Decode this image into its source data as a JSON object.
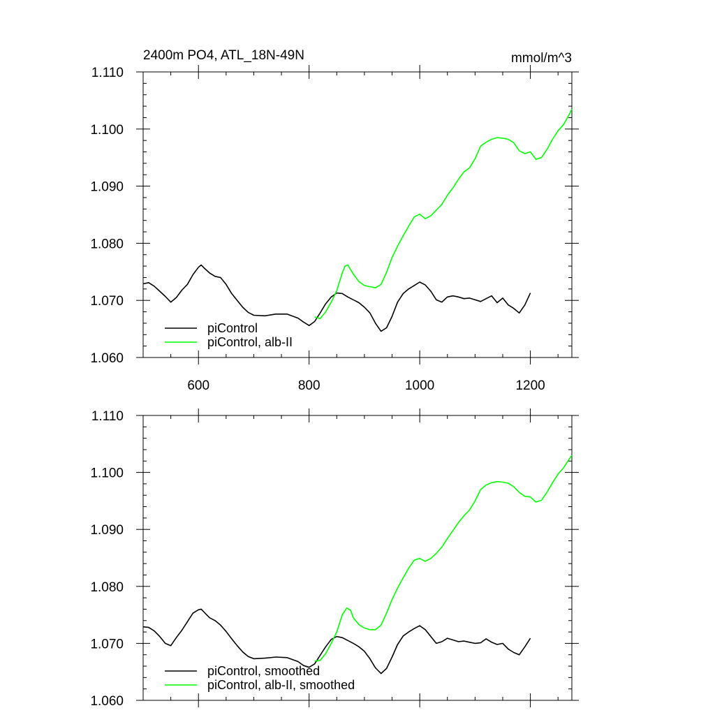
{
  "colors": {
    "frame": "#000000",
    "picontrol": "#000000",
    "albII": "#00ff00"
  },
  "chart_data": [
    {
      "type": "line",
      "title": "2400m PO4, ATL_18N-49N",
      "units": "mmol/m^3",
      "xlim": [
        500,
        1275
      ],
      "ylim": [
        1.06,
        1.11
      ],
      "x_ticks": [
        600,
        800,
        1000,
        1200
      ],
      "x_tick_labels": [
        "600",
        "800",
        "1000",
        "1200"
      ],
      "y_ticks": [
        1.06,
        1.07,
        1.08,
        1.09,
        1.1,
        1.11
      ],
      "y_tick_labels": [
        "1.060",
        "1.070",
        "1.080",
        "1.090",
        "1.100",
        "1.110"
      ],
      "grid": false,
      "legend_position": "bottom-left",
      "series": [
        {
          "name": "piControl",
          "color": "#000000",
          "points": [
            [
              500,
              1.0729
            ],
            [
              510,
              1.0731
            ],
            [
              520,
              1.0725
            ],
            [
              530,
              1.0716
            ],
            [
              540,
              1.0707
            ],
            [
              550,
              1.0697
            ],
            [
              560,
              1.0705
            ],
            [
              570,
              1.0718
            ],
            [
              580,
              1.0728
            ],
            [
              590,
              1.0745
            ],
            [
              600,
              1.0758
            ],
            [
              605,
              1.0762
            ],
            [
              610,
              1.0757
            ],
            [
              620,
              1.0748
            ],
            [
              630,
              1.0742
            ],
            [
              640,
              1.074
            ],
            [
              650,
              1.0728
            ],
            [
              660,
              1.0712
            ],
            [
              670,
              1.07
            ],
            [
              680,
              1.0688
            ],
            [
              690,
              1.0679
            ],
            [
              700,
              1.0674
            ],
            [
              720,
              1.0673
            ],
            [
              740,
              1.0676
            ],
            [
              760,
              1.0676
            ],
            [
              780,
              1.0669
            ],
            [
              790,
              1.0662
            ],
            [
              800,
              1.0656
            ],
            [
              810,
              1.0663
            ],
            [
              820,
              1.0678
            ],
            [
              830,
              1.0694
            ],
            [
              840,
              1.0706
            ],
            [
              850,
              1.0713
            ],
            [
              860,
              1.0712
            ],
            [
              870,
              1.0706
            ],
            [
              880,
              1.0701
            ],
            [
              890,
              1.0696
            ],
            [
              900,
              1.0688
            ],
            [
              910,
              1.0678
            ],
            [
              920,
              1.066
            ],
            [
              930,
              1.0646
            ],
            [
              940,
              1.0652
            ],
            [
              950,
              1.0672
            ],
            [
              960,
              1.0697
            ],
            [
              970,
              1.0712
            ],
            [
              980,
              1.072
            ],
            [
              990,
              1.0726
            ],
            [
              1000,
              1.0732
            ],
            [
              1010,
              1.0727
            ],
            [
              1020,
              1.0716
            ],
            [
              1030,
              1.0701
            ],
            [
              1040,
              1.0697
            ],
            [
              1050,
              1.0706
            ],
            [
              1060,
              1.0708
            ],
            [
              1070,
              1.0706
            ],
            [
              1080,
              1.0703
            ],
            [
              1090,
              1.0704
            ],
            [
              1100,
              1.0701
            ],
            [
              1110,
              1.0698
            ],
            [
              1120,
              1.0703
            ],
            [
              1130,
              1.0708
            ],
            [
              1140,
              1.0696
            ],
            [
              1150,
              1.0704
            ],
            [
              1160,
              1.0692
            ],
            [
              1170,
              1.0686
            ],
            [
              1180,
              1.0678
            ],
            [
              1190,
              1.0692
            ],
            [
              1200,
              1.0713
            ]
          ]
        },
        {
          "name": "piControl, alb-II",
          "color": "#00ff00",
          "points": [
            [
              810,
              1.0671
            ],
            [
              820,
              1.0668
            ],
            [
              830,
              1.068
            ],
            [
              840,
              1.0697
            ],
            [
              850,
              1.0717
            ],
            [
              860,
              1.0748
            ],
            [
              865,
              1.076
            ],
            [
              870,
              1.0762
            ],
            [
              880,
              1.0746
            ],
            [
              890,
              1.0733
            ],
            [
              900,
              1.0726
            ],
            [
              910,
              1.0724
            ],
            [
              920,
              1.0722
            ],
            [
              930,
              1.0728
            ],
            [
              940,
              1.0749
            ],
            [
              950,
              1.0775
            ],
            [
              960,
              1.0795
            ],
            [
              970,
              1.0813
            ],
            [
              980,
              1.083
            ],
            [
              990,
              1.0846
            ],
            [
              1000,
              1.0851
            ],
            [
              1010,
              1.0843
            ],
            [
              1020,
              1.0848
            ],
            [
              1030,
              1.0858
            ],
            [
              1040,
              1.0868
            ],
            [
              1050,
              1.0884
            ],
            [
              1060,
              1.0897
            ],
            [
              1070,
              1.0912
            ],
            [
              1080,
              1.0925
            ],
            [
              1090,
              1.0932
            ],
            [
              1100,
              1.0948
            ],
            [
              1110,
              1.097
            ],
            [
              1120,
              1.0977
            ],
            [
              1130,
              1.0982
            ],
            [
              1140,
              1.0985
            ],
            [
              1150,
              1.0984
            ],
            [
              1160,
              1.0982
            ],
            [
              1170,
              1.0976
            ],
            [
              1180,
              1.0962
            ],
            [
              1190,
              1.0957
            ],
            [
              1200,
              1.096
            ],
            [
              1210,
              1.0947
            ],
            [
              1220,
              1.095
            ],
            [
              1230,
              1.0964
            ],
            [
              1240,
              1.0982
            ],
            [
              1250,
              1.0997
            ],
            [
              1260,
              1.1008
            ],
            [
              1270,
              1.1025
            ],
            [
              1275,
              1.1035
            ]
          ]
        }
      ]
    },
    {
      "type": "line",
      "title": "",
      "units": "",
      "xlim": [
        500,
        1275
      ],
      "ylim": [
        1.06,
        1.11
      ],
      "x_ticks": [
        600,
        800,
        1000,
        1200
      ],
      "x_tick_labels": [],
      "y_ticks": [
        1.06,
        1.07,
        1.08,
        1.09,
        1.1,
        1.11
      ],
      "y_tick_labels": [
        "1.060",
        "1.070",
        "1.080",
        "1.090",
        "1.100",
        "1.110"
      ],
      "grid": false,
      "legend_position": "bottom-left",
      "series": [
        {
          "name": "piControl, smoothed",
          "color": "#000000",
          "points": [
            [
              500,
              1.0729
            ],
            [
              510,
              1.0728
            ],
            [
              520,
              1.0722
            ],
            [
              530,
              1.0712
            ],
            [
              540,
              1.07
            ],
            [
              550,
              1.0696
            ],
            [
              560,
              1.071
            ],
            [
              570,
              1.0723
            ],
            [
              580,
              1.0738
            ],
            [
              590,
              1.0753
            ],
            [
              600,
              1.0759
            ],
            [
              605,
              1.076
            ],
            [
              610,
              1.0755
            ],
            [
              620,
              1.0745
            ],
            [
              630,
              1.074
            ],
            [
              640,
              1.0732
            ],
            [
              650,
              1.0721
            ],
            [
              660,
              1.0708
            ],
            [
              670,
              1.0696
            ],
            [
              680,
              1.0685
            ],
            [
              690,
              1.0677
            ],
            [
              700,
              1.0673
            ],
            [
              720,
              1.0674
            ],
            [
              740,
              1.0676
            ],
            [
              760,
              1.0675
            ],
            [
              780,
              1.0668
            ],
            [
              790,
              1.0661
            ],
            [
              800,
              1.0658
            ],
            [
              810,
              1.0664
            ],
            [
              820,
              1.0679
            ],
            [
              830,
              1.0694
            ],
            [
              840,
              1.0707
            ],
            [
              850,
              1.0712
            ],
            [
              860,
              1.071
            ],
            [
              870,
              1.0705
            ],
            [
              880,
              1.07
            ],
            [
              890,
              1.0694
            ],
            [
              900,
              1.0686
            ],
            [
              910,
              1.0673
            ],
            [
              920,
              1.0657
            ],
            [
              930,
              1.0647
            ],
            [
              940,
              1.0656
            ],
            [
              950,
              1.0676
            ],
            [
              960,
              1.0698
            ],
            [
              970,
              1.0713
            ],
            [
              980,
              1.072
            ],
            [
              990,
              1.0726
            ],
            [
              1000,
              1.0731
            ],
            [
              1010,
              1.0724
            ],
            [
              1020,
              1.0712
            ],
            [
              1030,
              1.07
            ],
            [
              1040,
              1.0703
            ],
            [
              1050,
              1.0709
            ],
            [
              1060,
              1.0706
            ],
            [
              1070,
              1.0703
            ],
            [
              1080,
              1.0704
            ],
            [
              1090,
              1.0702
            ],
            [
              1100,
              1.07
            ],
            [
              1110,
              1.0701
            ],
            [
              1120,
              1.0708
            ],
            [
              1130,
              1.0702
            ],
            [
              1140,
              1.0698
            ],
            [
              1150,
              1.07
            ],
            [
              1160,
              1.069
            ],
            [
              1170,
              1.0684
            ],
            [
              1180,
              1.068
            ],
            [
              1190,
              1.0694
            ],
            [
              1200,
              1.0709
            ]
          ]
        },
        {
          "name": "piControl, alb-II, smoothed",
          "color": "#00ff00",
          "points": [
            [
              810,
              1.0669
            ],
            [
              820,
              1.067
            ],
            [
              830,
              1.0682
            ],
            [
              840,
              1.07
            ],
            [
              850,
              1.072
            ],
            [
              860,
              1.075
            ],
            [
              868,
              1.0762
            ],
            [
              875,
              1.0758
            ],
            [
              880,
              1.0745
            ],
            [
              890,
              1.0733
            ],
            [
              900,
              1.0727
            ],
            [
              910,
              1.0724
            ],
            [
              920,
              1.0724
            ],
            [
              930,
              1.0732
            ],
            [
              940,
              1.0753
            ],
            [
              950,
              1.0777
            ],
            [
              960,
              1.0797
            ],
            [
              970,
              1.0815
            ],
            [
              980,
              1.0832
            ],
            [
              990,
              1.0846
            ],
            [
              1000,
              1.0849
            ],
            [
              1010,
              1.0844
            ],
            [
              1020,
              1.0849
            ],
            [
              1030,
              1.0858
            ],
            [
              1040,
              1.0869
            ],
            [
              1050,
              1.0884
            ],
            [
              1060,
              1.0898
            ],
            [
              1070,
              1.0912
            ],
            [
              1080,
              1.0924
            ],
            [
              1090,
              1.0934
            ],
            [
              1100,
              1.095
            ],
            [
              1110,
              1.097
            ],
            [
              1120,
              1.0978
            ],
            [
              1130,
              1.0982
            ],
            [
              1140,
              1.0984
            ],
            [
              1150,
              1.0983
            ],
            [
              1160,
              1.0981
            ],
            [
              1170,
              1.0975
            ],
            [
              1180,
              1.0965
            ],
            [
              1190,
              1.0958
            ],
            [
              1200,
              1.0957
            ],
            [
              1210,
              1.0948
            ],
            [
              1220,
              1.0951
            ],
            [
              1230,
              1.0965
            ],
            [
              1240,
              1.0982
            ],
            [
              1250,
              1.0997
            ],
            [
              1260,
              1.1008
            ],
            [
              1270,
              1.1023
            ],
            [
              1275,
              1.103
            ]
          ]
        }
      ]
    }
  ]
}
